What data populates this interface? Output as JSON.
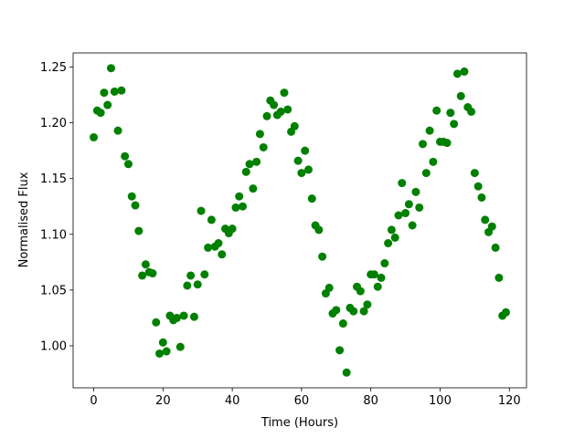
{
  "chart_data": {
    "type": "scatter",
    "x_label": "Time (Hours)",
    "y_label": "Normalised Flux",
    "color": "#008000",
    "x": [
      0,
      1,
      2,
      3,
      4,
      5,
      6,
      7,
      8,
      9,
      10,
      11,
      12,
      13,
      14,
      15,
      16,
      17,
      18,
      19,
      20,
      21,
      22,
      23,
      24,
      25,
      26,
      27,
      28,
      29,
      30,
      31,
      32,
      33,
      34,
      35,
      36,
      37,
      38,
      39,
      40,
      41,
      42,
      43,
      44,
      45,
      46,
      47,
      48,
      49,
      50,
      51,
      52,
      53,
      54,
      55,
      56,
      57,
      58,
      59,
      60,
      61,
      62,
      63,
      64,
      65,
      66,
      67,
      68,
      69,
      70,
      71,
      72,
      73,
      74,
      75,
      76,
      77,
      78,
      79,
      80,
      81,
      82,
      83,
      84,
      85,
      86,
      87,
      88,
      89,
      90,
      91,
      92,
      93,
      94,
      95,
      96,
      97,
      98,
      99,
      100,
      101,
      102,
      103,
      104,
      105,
      106,
      107,
      108,
      109,
      110,
      111,
      112,
      113,
      114,
      115,
      116,
      117,
      118,
      119
    ],
    "values": [
      1.187,
      1.211,
      1.209,
      1.227,
      1.216,
      1.249,
      1.228,
      1.193,
      1.229,
      1.17,
      1.163,
      1.134,
      1.126,
      1.103,
      1.063,
      1.073,
      1.066,
      1.065,
      1.021,
      0.993,
      1.003,
      0.995,
      1.027,
      1.023,
      1.025,
      0.999,
      1.027,
      1.054,
      1.063,
      1.026,
      1.055,
      1.121,
      1.064,
      1.088,
      1.113,
      1.089,
      1.092,
      1.082,
      1.105,
      1.101,
      1.105,
      1.124,
      1.134,
      1.125,
      1.156,
      1.163,
      1.141,
      1.165,
      1.19,
      1.178,
      1.206,
      1.22,
      1.216,
      1.207,
      1.21,
      1.227,
      1.212,
      1.192,
      1.197,
      1.166,
      1.155,
      1.175,
      1.158,
      1.132,
      1.108,
      1.104,
      1.08,
      1.047,
      1.052,
      1.029,
      1.032,
      0.996,
      1.02,
      0.976,
      1.034,
      1.031,
      1.053,
      1.049,
      1.031,
      1.037,
      1.064,
      1.064,
      1.053,
      1.061,
      1.074,
      1.092,
      1.104,
      1.097,
      1.117,
      1.146,
      1.119,
      1.127,
      1.108,
      1.138,
      1.124,
      1.181,
      1.155,
      1.193,
      1.165,
      1.211,
      1.183,
      1.183,
      1.182,
      1.209,
      1.199,
      1.244,
      1.224,
      1.246,
      1.214,
      1.21,
      1.155,
      1.143,
      1.133,
      1.113,
      1.102,
      1.107,
      1.088,
      1.061,
      1.027,
      1.03
    ],
    "xlim": [
      -5.95,
      124.95
    ],
    "ylim": [
      0.9623,
      1.2627
    ],
    "xticks": [
      0,
      20,
      40,
      60,
      80,
      100,
      120
    ],
    "yticks": [
      {
        "value": 1.0,
        "label": "1.00"
      },
      {
        "value": 1.05,
        "label": "1.05"
      },
      {
        "value": 1.1,
        "label": "1.10"
      },
      {
        "value": 1.15,
        "label": "1.15"
      },
      {
        "value": 1.2,
        "label": "1.20"
      },
      {
        "value": 1.25,
        "label": "1.25"
      }
    ],
    "grid": false
  }
}
